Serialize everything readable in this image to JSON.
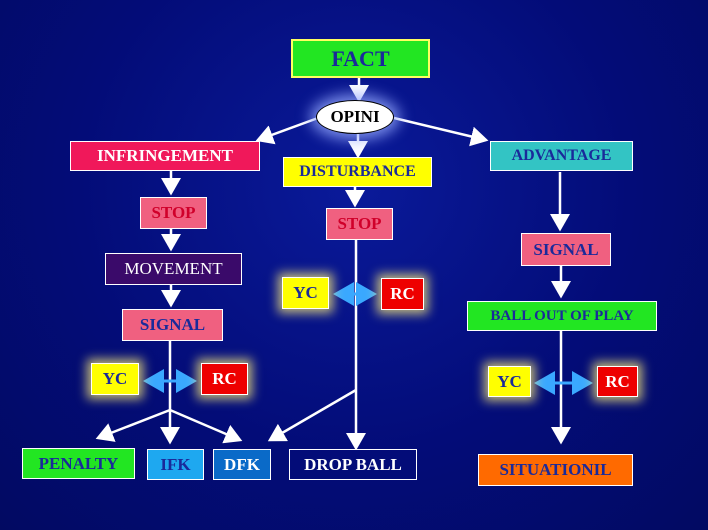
{
  "colors": {
    "background": "#030c78",
    "arrow": "#ffffff",
    "double_arrow": "#3aa8ff"
  },
  "nodes": {
    "fact": {
      "label": "FACT",
      "bg": "#22e622",
      "color": "#1a2a9a"
    },
    "opini": {
      "label": "OPINI"
    },
    "infringement": {
      "label": "INFRINGEMENT",
      "bg": "#f0185a",
      "color": "#ffffff"
    },
    "disturbance": {
      "label": "DISTURBANCE",
      "bg": "#ffff00",
      "color": "#1a2a9a"
    },
    "advantage": {
      "label": "ADVANTAGE",
      "bg": "#33c4c4",
      "color": "#1a2a9a"
    },
    "stop_left": {
      "label": "STOP",
      "bg": "#f06080",
      "color": "#d0002a"
    },
    "stop_mid": {
      "label": "STOP",
      "bg": "#f06080",
      "color": "#d0002a"
    },
    "movement": {
      "label": "MOVEMENT",
      "bg": "#3a0a6a",
      "color": "#ffffff"
    },
    "signal_left": {
      "label": "SIGNAL",
      "bg": "#f06080",
      "color": "#1a2a9a"
    },
    "signal_right": {
      "label": "SIGNAL",
      "bg": "#f06080",
      "color": "#1a2a9a"
    },
    "ball_out_of_play": {
      "label": "BALL OUT OF PLAY",
      "bg": "#22e622",
      "color": "#1a2a9a"
    },
    "yc_left": {
      "label": "YC",
      "bg": "#ffff00",
      "color": "#1a2a9a"
    },
    "rc_left": {
      "label": "RC",
      "bg": "#ee0000",
      "color": "#ffffff"
    },
    "yc_mid": {
      "label": "YC",
      "bg": "#ffff00",
      "color": "#1a2a9a"
    },
    "rc_mid": {
      "label": "RC",
      "bg": "#ee0000",
      "color": "#ffffff"
    },
    "yc_right": {
      "label": "YC",
      "bg": "#ffff00",
      "color": "#1a2a9a"
    },
    "rc_right": {
      "label": "RC",
      "bg": "#ee0000",
      "color": "#ffffff"
    },
    "penalty": {
      "label": "PENALTY",
      "bg": "#22e622",
      "color": "#1a2a9a"
    },
    "ifk": {
      "label": "IFK",
      "bg": "#1ea8f0",
      "color": "#1a2a9a"
    },
    "dfk": {
      "label": "DFK",
      "bg": "#0a6ac8",
      "color": "#ffffff"
    },
    "drop_ball": {
      "label": "DROP BALL",
      "bg": "#030c78",
      "color": "#ffffff"
    },
    "situationil": {
      "label": "SITUATIONIL",
      "bg": "#ff6a00",
      "color": "#1a2a9a"
    }
  }
}
